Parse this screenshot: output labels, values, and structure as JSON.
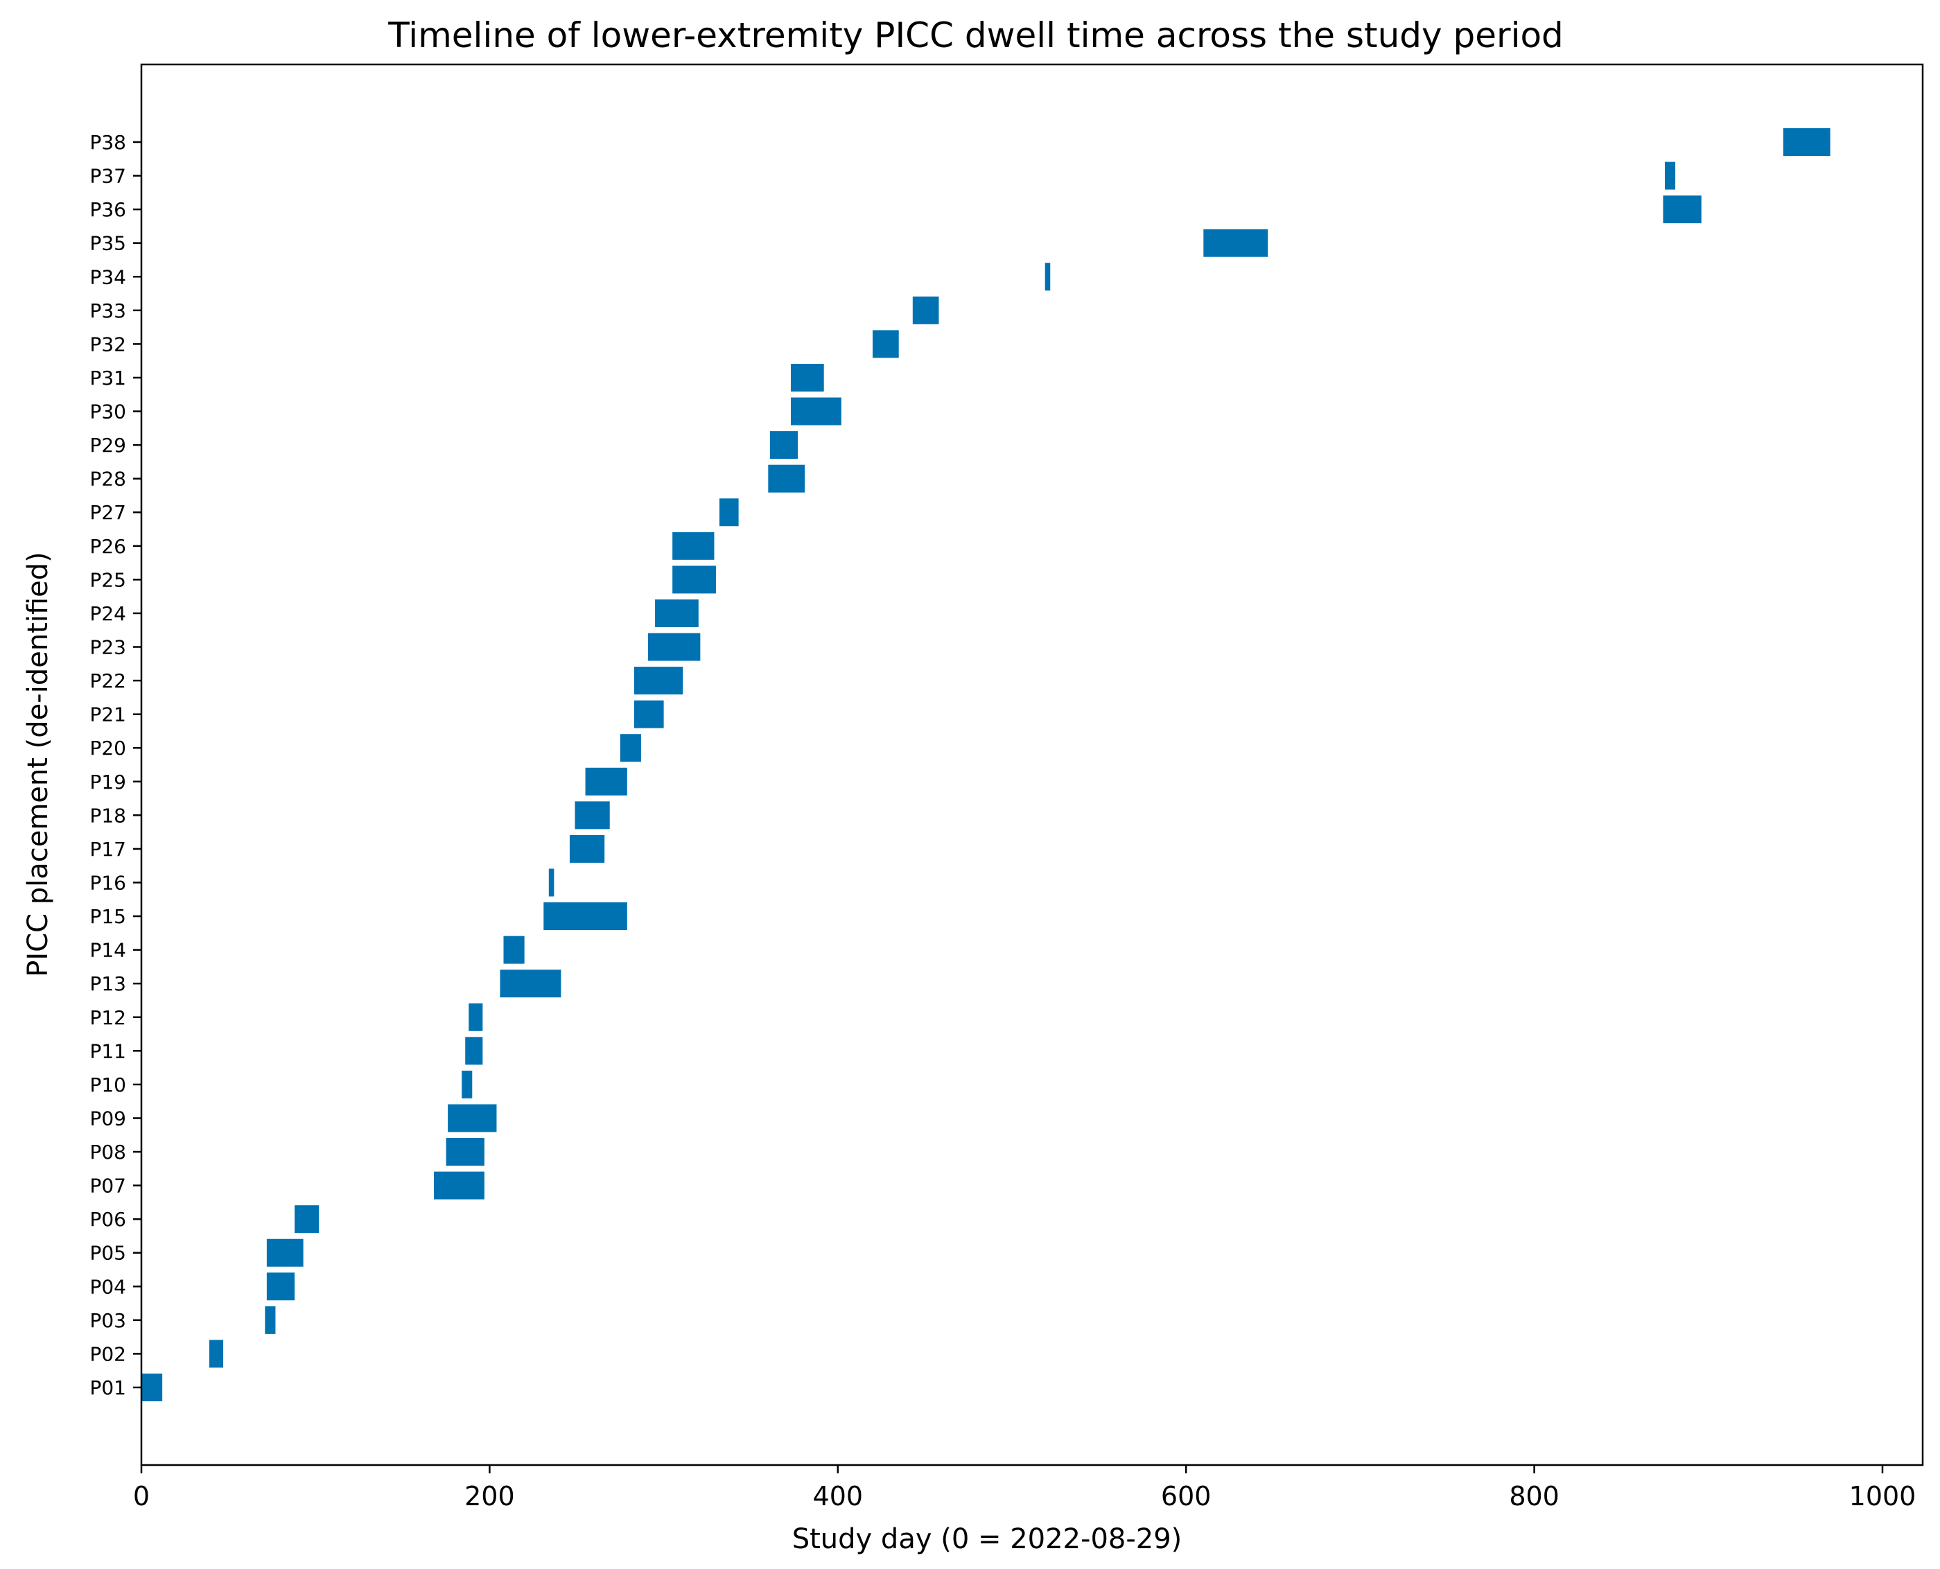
{
  "chart_data": {
    "type": "bar",
    "orientation": "horizontal-range",
    "title": "Timeline of lower-extremity PICC dwell time across the study period",
    "xlabel": "Study day (0 = 2022-08-29)",
    "ylabel": "PICC placement (de-identified)",
    "xlim": [
      0,
      1020
    ],
    "xticks": [
      0,
      200,
      400,
      600,
      800,
      1000
    ],
    "grid": false,
    "bar_color": "#0072B2",
    "bars": [
      {
        "label": "P01",
        "start": 0,
        "end": 12
      },
      {
        "label": "P02",
        "start": 39,
        "end": 47
      },
      {
        "label": "P03",
        "start": 71,
        "end": 77
      },
      {
        "label": "P04",
        "start": 72,
        "end": 88
      },
      {
        "label": "P05",
        "start": 72,
        "end": 93
      },
      {
        "label": "P06",
        "start": 88,
        "end": 102
      },
      {
        "label": "P07",
        "start": 168,
        "end": 197
      },
      {
        "label": "P08",
        "start": 175,
        "end": 197
      },
      {
        "label": "P09",
        "start": 176,
        "end": 204
      },
      {
        "label": "P10",
        "start": 184,
        "end": 190
      },
      {
        "label": "P11",
        "start": 186,
        "end": 196
      },
      {
        "label": "P12",
        "start": 188,
        "end": 196
      },
      {
        "label": "P13",
        "start": 206,
        "end": 241
      },
      {
        "label": "P14",
        "start": 208,
        "end": 220
      },
      {
        "label": "P15",
        "start": 231,
        "end": 279
      },
      {
        "label": "P16",
        "start": 234,
        "end": 237
      },
      {
        "label": "P17",
        "start": 246,
        "end": 266
      },
      {
        "label": "P18",
        "start": 249,
        "end": 269
      },
      {
        "label": "P19",
        "start": 255,
        "end": 279
      },
      {
        "label": "P20",
        "start": 275,
        "end": 287
      },
      {
        "label": "P21",
        "start": 283,
        "end": 300
      },
      {
        "label": "P22",
        "start": 283,
        "end": 311
      },
      {
        "label": "P23",
        "start": 291,
        "end": 321
      },
      {
        "label": "P24",
        "start": 295,
        "end": 320
      },
      {
        "label": "P25",
        "start": 305,
        "end": 330
      },
      {
        "label": "P26",
        "start": 305,
        "end": 329
      },
      {
        "label": "P27",
        "start": 332,
        "end": 343
      },
      {
        "label": "P28",
        "start": 360,
        "end": 381
      },
      {
        "label": "P29",
        "start": 361,
        "end": 377
      },
      {
        "label": "P30",
        "start": 373,
        "end": 402
      },
      {
        "label": "P31",
        "start": 373,
        "end": 392
      },
      {
        "label": "P32",
        "start": 420,
        "end": 435
      },
      {
        "label": "P33",
        "start": 443,
        "end": 458
      },
      {
        "label": "P34",
        "start": 519,
        "end": 522
      },
      {
        "label": "P35",
        "start": 610,
        "end": 647
      },
      {
        "label": "P36",
        "start": 874,
        "end": 896
      },
      {
        "label": "P37",
        "start": 875,
        "end": 881
      },
      {
        "label": "P38",
        "start": 943,
        "end": 970
      }
    ]
  }
}
